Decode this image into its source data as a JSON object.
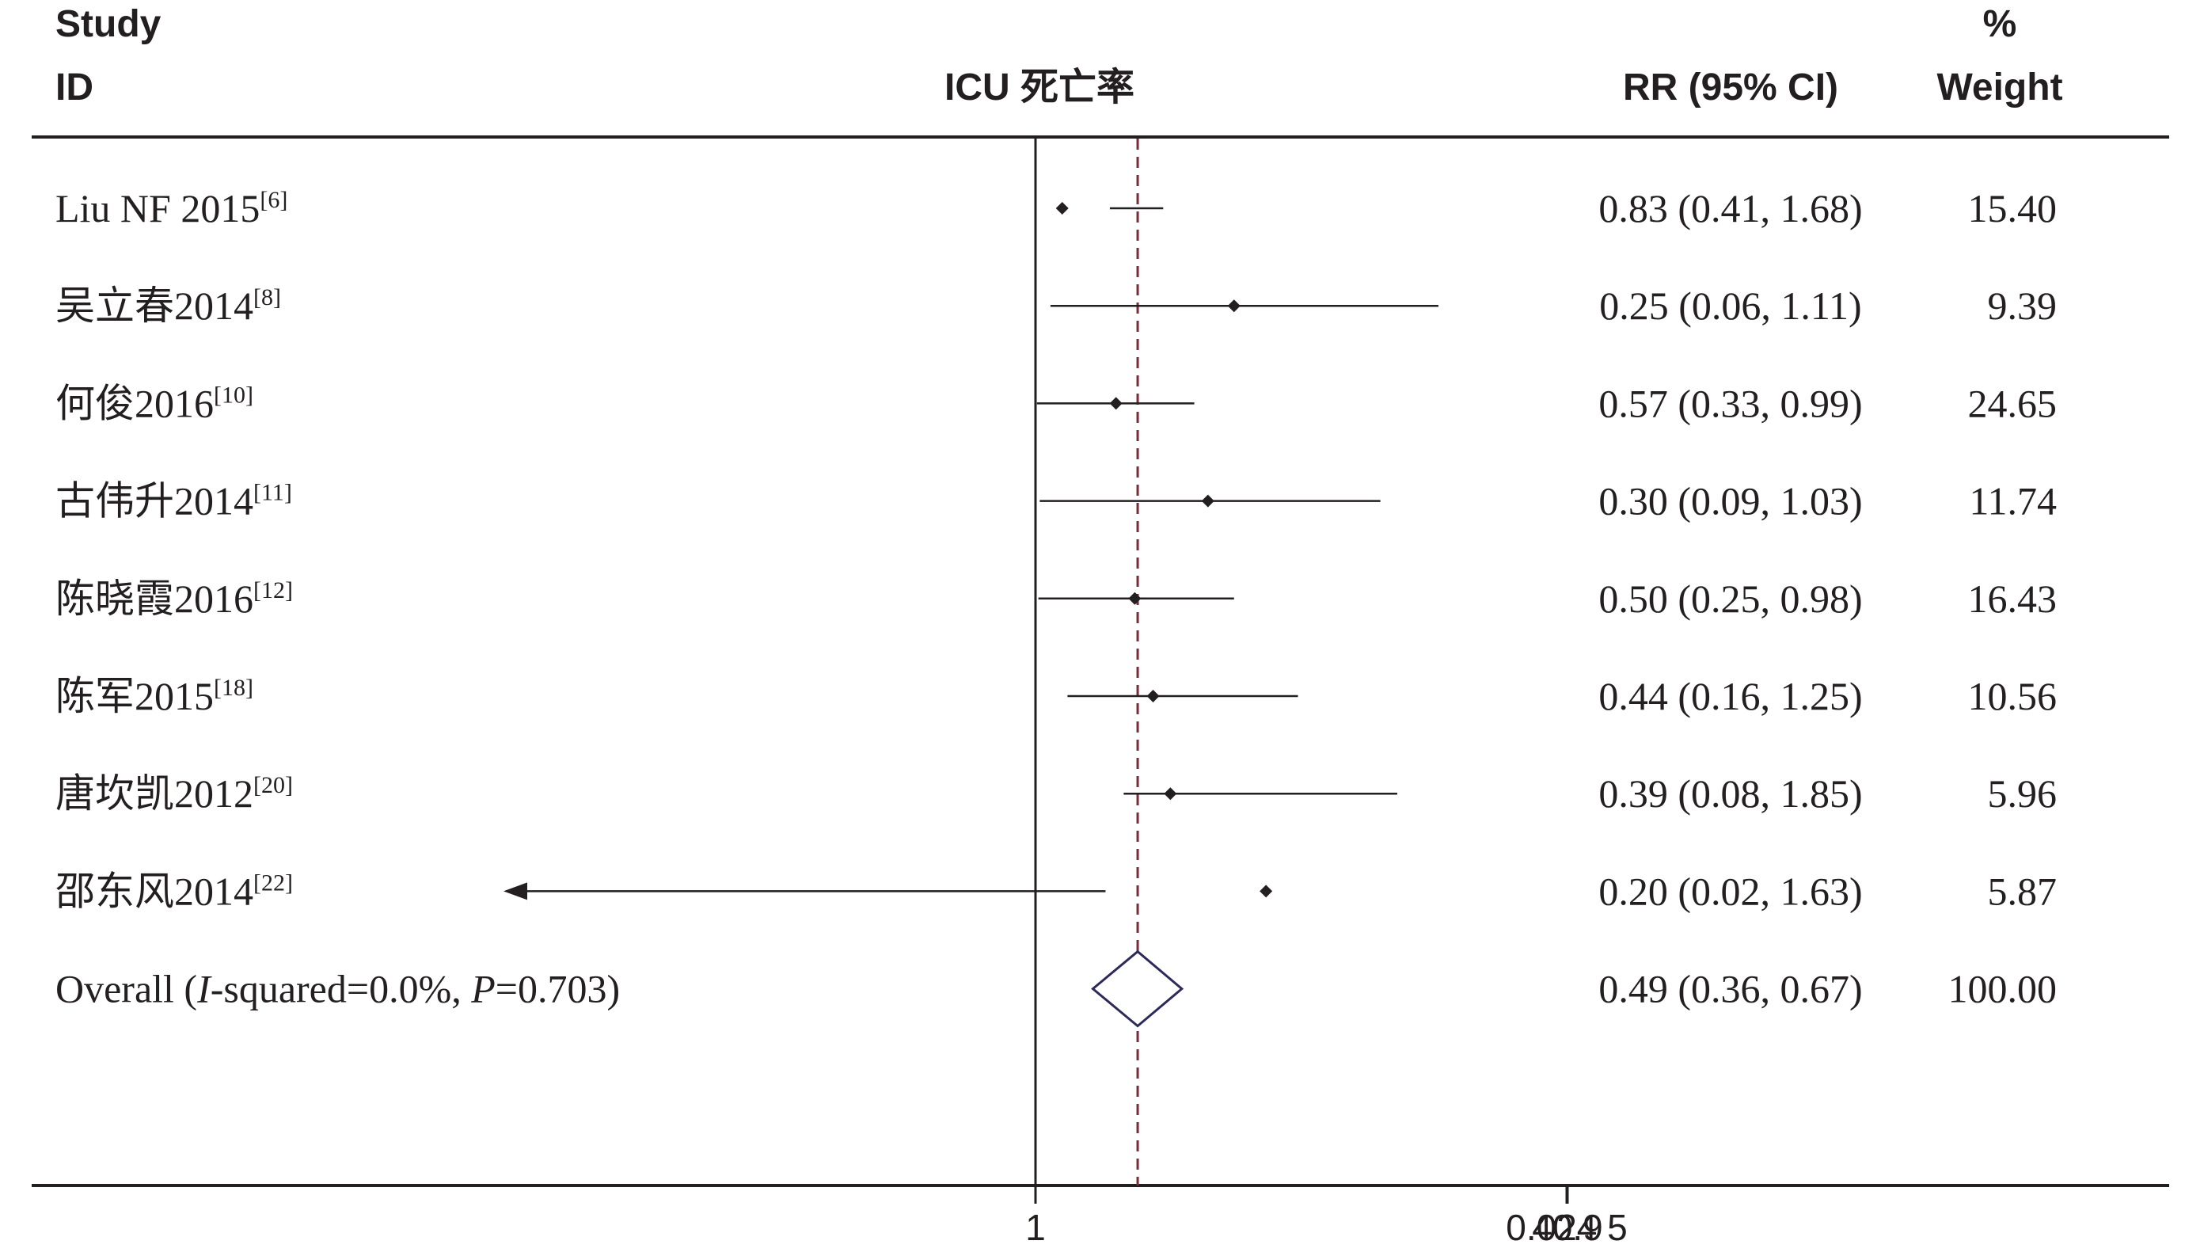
{
  "header": {
    "study_line1": "Study",
    "study_line2": "ID",
    "plot_title": "ICU 死亡率",
    "rr_col": "RR (95% CI)",
    "weight_line1": "%",
    "weight_line2": "Weight"
  },
  "chart_data": {
    "type": "forest",
    "title": "ICU 死亡率",
    "effect_measure": "RR (95% CI)",
    "x_scale": "log",
    "x_ticks": [
      {
        "value": 0.0245,
        "label": "0.024 5"
      },
      {
        "value": 1,
        "label": "1"
      },
      {
        "value": 40.9,
        "label": "40.9"
      }
    ],
    "null_line": 1,
    "studies": [
      {
        "name": "Liu NF 2015",
        "ref": "[6]",
        "rr": 0.83,
        "lower": 0.41,
        "upper": 1.68,
        "ci_text": "0.83 (0.41, 1.68)",
        "weight": "15.40"
      },
      {
        "name": "吴立春2014",
        "ref": "[8]",
        "rr": 0.25,
        "lower": 0.06,
        "upper": 1.11,
        "ci_text": "0.25 (0.06, 1.11)",
        "weight": "9.39"
      },
      {
        "name": "何俊2016",
        "ref": "[10]",
        "rr": 0.57,
        "lower": 0.33,
        "upper": 0.99,
        "ci_text": "0.57 (0.33, 0.99)",
        "weight": "24.65"
      },
      {
        "name": "古伟升2014",
        "ref": "[11]",
        "rr": 0.3,
        "lower": 0.09,
        "upper": 1.03,
        "ci_text": "0.30 (0.09, 1.03)",
        "weight": "11.74"
      },
      {
        "name": "陈晓霞2016",
        "ref": "[12]",
        "rr": 0.5,
        "lower": 0.25,
        "upper": 0.98,
        "ci_text": "0.50 (0.25, 0.98)",
        "weight": "16.43"
      },
      {
        "name": "陈军2015",
        "ref": "[18]",
        "rr": 0.44,
        "lower": 0.16,
        "upper": 1.25,
        "ci_text": "0.44 (0.16, 1.25)",
        "weight": "10.56"
      },
      {
        "name": "唐坎凯2012",
        "ref": "[20]",
        "rr": 0.39,
        "lower": 0.08,
        "upper": 1.85,
        "ci_text": "0.39 (0.08, 1.85)",
        "weight": "5.96"
      },
      {
        "name": "邵东风2014",
        "ref": "[22]",
        "rr": 0.2,
        "lower": 0.02,
        "upper": 1.63,
        "ci_text": "0.20 (0.02, 1.63)",
        "weight": "5.87",
        "lower_truncated": true
      }
    ],
    "overall": {
      "label_prefix": "Overall  (",
      "i2_symbol": "I",
      "i2_text": "-squared=0.0%, ",
      "p_symbol": "P",
      "p_text": "=0.703)",
      "rr": 0.49,
      "lower": 0.36,
      "upper": 0.67,
      "ci_text": "0.49 (0.36, 0.67)",
      "weight": "100.00"
    },
    "colors": {
      "text": "#231f20",
      "overall_line": "#7a2b3a",
      "diamond": "#2b2a5a"
    }
  }
}
